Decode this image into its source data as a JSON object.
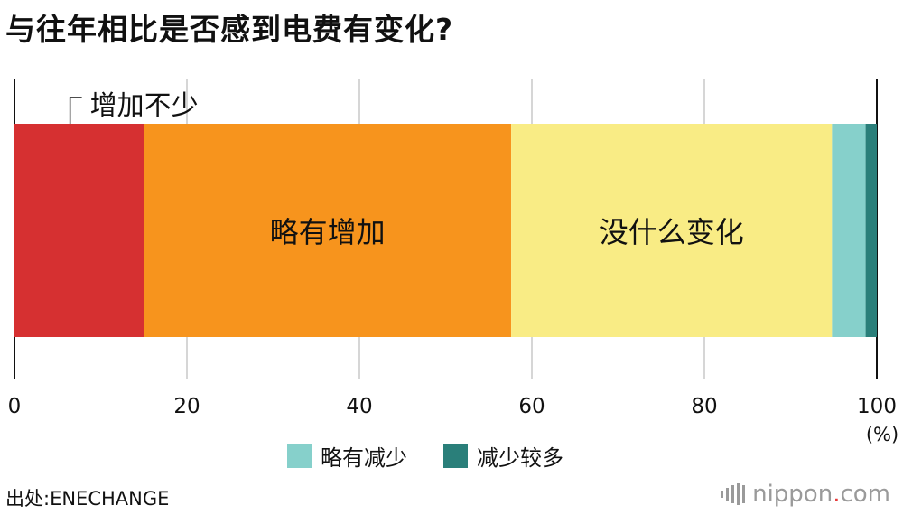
{
  "title": "与往年相比是否感到电费有变化?",
  "chart_data": {
    "type": "bar",
    "orientation": "horizontal-stacked-100",
    "title": "与往年相比是否感到电费有变化?",
    "series": [
      {
        "name": "增加不少",
        "value": 15.0,
        "color": "#d63031",
        "label_position": "callout-above"
      },
      {
        "name": "略有增加",
        "value": 42.6,
        "color": "#f7941d",
        "label_position": "inside"
      },
      {
        "name": "没什么变化",
        "value": 37.2,
        "color": "#f9ec85",
        "label_position": "inside"
      },
      {
        "name": "略有减少",
        "value": 3.9,
        "color": "#86d0cb",
        "label_position": "legend"
      },
      {
        "name": "减少较多",
        "value": 1.3,
        "color": "#2a7f7a",
        "label_position": "legend"
      }
    ],
    "xlim": [
      0,
      100
    ],
    "xticks": [
      "0",
      "20",
      "40",
      "60",
      "80",
      "100"
    ],
    "xunit": "(%)",
    "grid": true,
    "legend_placement": "bottom-center"
  },
  "legend": [
    {
      "label": "略有减少",
      "color": "#86d0cb"
    },
    {
      "label": "减少较多",
      "color": "#2a7f7a"
    }
  ],
  "source": "出处:ENECHANGE",
  "brand": {
    "name": "nippon",
    "dot": ".",
    "tld": "com"
  }
}
